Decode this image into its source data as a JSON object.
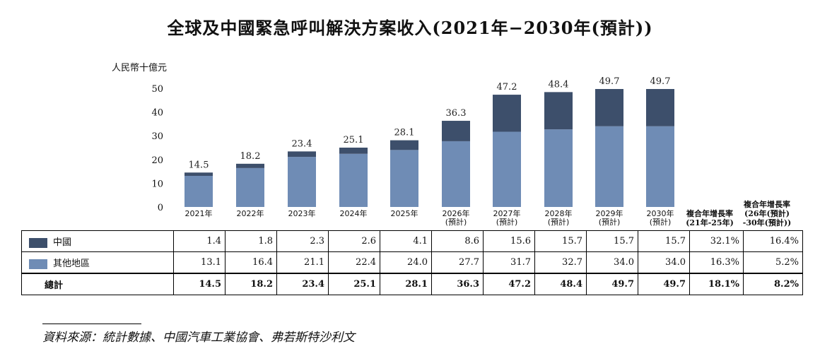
{
  "title": "全球及中國緊急呼叫解決方案收入(2021年−2030年(預計))",
  "unit_label": "人民幣十億元",
  "colors": {
    "china": "#3d4f6b",
    "other": "#6f8cb5"
  },
  "chart_data": {
    "type": "bar",
    "stacked": true,
    "title": "全球及中國緊急呼叫解決方案收入(2021年−2030年(預計))",
    "ylabel": "人民幣十億元",
    "ylim": [
      0,
      50
    ],
    "yticks": [
      "0",
      "10",
      "20",
      "30",
      "40",
      "50"
    ],
    "categories": [
      [
        "2021年"
      ],
      [
        "2022年"
      ],
      [
        "2023年"
      ],
      [
        "2024年"
      ],
      [
        "2025年"
      ],
      [
        "2026年",
        "(預計)"
      ],
      [
        "2027年",
        "(預計)"
      ],
      [
        "2028年",
        "(預計)"
      ],
      [
        "2029年",
        "(預計)"
      ],
      [
        "2030年",
        "(預計)"
      ]
    ],
    "series": [
      {
        "name": "其他地區",
        "values": [
          13.1,
          16.4,
          21.1,
          22.4,
          24.0,
          27.7,
          31.7,
          32.7,
          34.0,
          34.0
        ]
      },
      {
        "name": "中國",
        "values": [
          1.4,
          1.8,
          2.3,
          2.6,
          4.1,
          8.6,
          15.6,
          15.7,
          15.7,
          15.7
        ]
      }
    ],
    "totals": [
      "14.5",
      "18.2",
      "23.4",
      "25.1",
      "28.1",
      "36.3",
      "47.2",
      "48.4",
      "49.7",
      "49.7"
    ]
  },
  "cagr_headers": [
    [
      "複合年增長率",
      "(21年-25年)"
    ],
    [
      "複合年增長率",
      "(26年(預計)",
      "-30年(預計))"
    ]
  ],
  "table": {
    "rows": [
      {
        "label": "中國",
        "swatch": "china",
        "values": [
          "1.4",
          "1.8",
          "2.3",
          "2.6",
          "4.1",
          "8.6",
          "15.6",
          "15.7",
          "15.7",
          "15.7",
          "32.1%",
          "16.4%"
        ]
      },
      {
        "label": "其他地區",
        "swatch": "other",
        "values": [
          "13.1",
          "16.4",
          "21.1",
          "22.4",
          "24.0",
          "27.7",
          "31.7",
          "32.7",
          "34.0",
          "34.0",
          "16.3%",
          "5.2%"
        ]
      },
      {
        "label": "總計",
        "swatch": null,
        "values": [
          "14.5",
          "18.2",
          "23.4",
          "25.1",
          "28.1",
          "36.3",
          "47.2",
          "48.4",
          "49.7",
          "49.7",
          "18.1%",
          "8.2%"
        ]
      }
    ]
  },
  "source": "資料來源：統計數據、中國汽車工業協會、弗若斯特沙利文"
}
